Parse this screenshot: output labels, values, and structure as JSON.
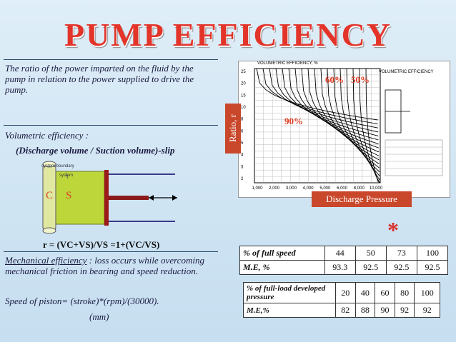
{
  "title": "PUMP  EFFICIENCY",
  "ratio_text": "The ratio of the power imparted on the fluid by the pump in relation to the power supplied to drive the pump.",
  "volumetric": {
    "heading": "Volumetric efficiency :",
    "formula": "(Discharge volume / Suction volume)-slip",
    "diagram_c": "C",
    "diagram_s": "S",
    "diagram_system_boundary": "system boundary",
    "diagram_system": "system",
    "ratio_formula": "r = (VC+VS)/VS  =1+(VC/VS)"
  },
  "mechanical": {
    "heading": "Mechanical efficiency",
    "rest": " : loss occurs while overcoming mechanical friction in bearing and speed reduction.",
    "speed": "Speed of piston= (stroke)*(rpm)/(30000).",
    "unit": "(mm)"
  },
  "chart": {
    "top_title": "VOLUMETRIC EFFICIENCY, %",
    "legend_title": "VOLUMETRIC EFFICIENCY",
    "ratio_label": "Ratio, r",
    "xlabel": "Discharge Pressure",
    "ann_60": "60%",
    "ann_50": "50%",
    "ann_90": "90%",
    "x_ticks": [
      "1,000",
      "2,000",
      "3,000",
      "4,000",
      "5,000",
      "6,000",
      "8,000",
      "10,000"
    ],
    "y_ticks": [
      "25",
      "20",
      "15",
      "10",
      "8",
      "6",
      "5",
      "4",
      "3",
      "2"
    ]
  },
  "star": "*",
  "table1": {
    "row1_label": "% of full speed",
    "row1": [
      "44",
      "50",
      "73",
      "100"
    ],
    "row2_label": "M.E, %",
    "row2": [
      "93.3",
      "92.5",
      "92.5",
      "92.5"
    ]
  },
  "table2": {
    "row1_label": "% of full-load developed pressure",
    "row1": [
      "20",
      "40",
      "60",
      "80",
      "100"
    ],
    "row2_label": "M.E,%",
    "row2": [
      "82",
      "88",
      "90",
      "92",
      "92"
    ]
  }
}
